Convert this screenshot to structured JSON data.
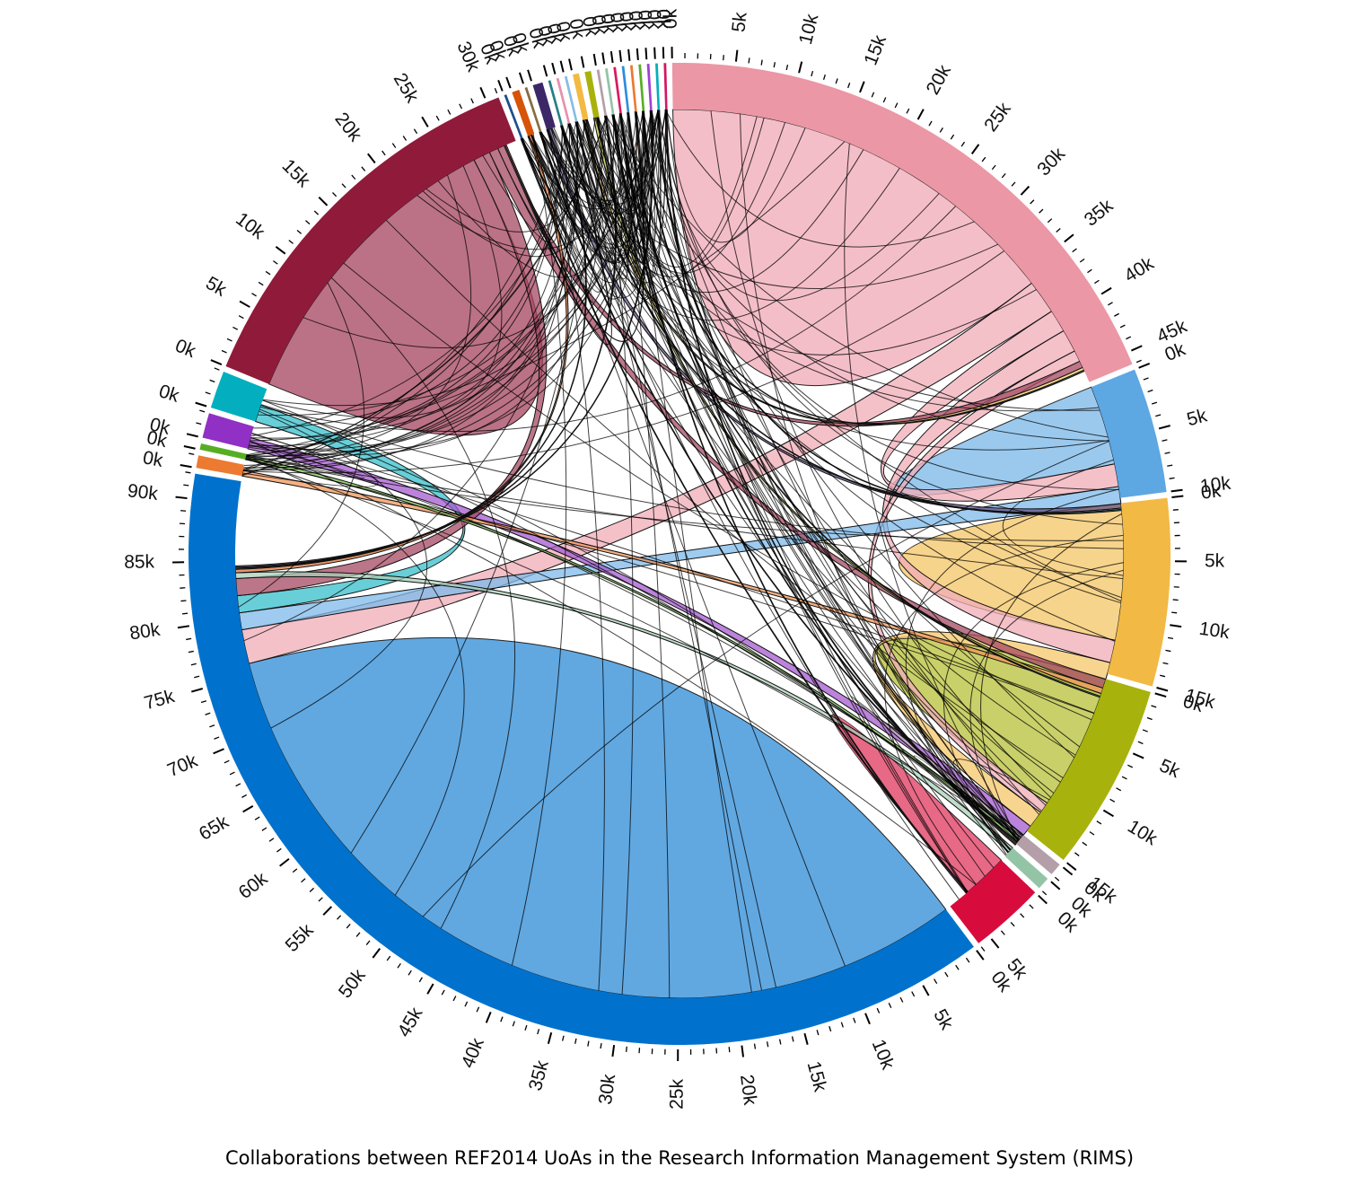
{
  "chart_data": {
    "type": "chord",
    "title": "",
    "caption": "Collaborations between REF2014 UoAs in the Research Information Management System (RIMS)",
    "tick_step": 1000,
    "label_step": 5000,
    "label_suffix": "k",
    "groups": [
      {
        "color": "#ec97a5",
        "total": 46000
      },
      {
        "color": "#5da7e3",
        "total": 10000
      },
      {
        "color": "#f2b944",
        "total": 15000
      },
      {
        "color": "#a8b20c",
        "total": 15000
      },
      {
        "color": "#b49ea8",
        "total": 1000
      },
      {
        "color": "#94c4a6",
        "total": 1000
      },
      {
        "color": "#d80c3c",
        "total": 6000
      },
      {
        "color": "#0072cd",
        "total": 92000
      },
      {
        "color": "#ec7a31",
        "total": 1000
      },
      {
        "color": "#57ae24",
        "total": 500
      },
      {
        "color": "#9030c4",
        "total": 2000
      },
      {
        "color": "#03afbe",
        "total": 3000
      },
      {
        "color": "#901a3a",
        "total": 31000
      },
      {
        "color": "#1f4e8c",
        "total": 200
      },
      {
        "color": "#d65307",
        "total": 600
      },
      {
        "color": "#8b6a3f",
        "total": 200
      },
      {
        "color": "#3c2868",
        "total": 800
      },
      {
        "color": "#287f86",
        "total": 200
      },
      {
        "color": "#e88fb0",
        "total": 200
      },
      {
        "color": "#86bde6",
        "total": 200
      },
      {
        "color": "#f2b944",
        "total": 500
      },
      {
        "color": "#a8b20c",
        "total": 500
      },
      {
        "color": "#b49ea8",
        "total": 200
      },
      {
        "color": "#94c4a6",
        "total": 200
      },
      {
        "color": "#d81c5e",
        "total": 200
      },
      {
        "color": "#2e8ddd",
        "total": 200
      },
      {
        "color": "#ec7a31",
        "total": 200
      },
      {
        "color": "#57ae24",
        "total": 200
      },
      {
        "color": "#a040d4",
        "total": 200
      },
      {
        "color": "#03afbe",
        "total": 200
      },
      {
        "color": "#d01860",
        "total": 200
      }
    ],
    "chords": [
      {
        "source": 0,
        "target": 0,
        "value": 36000
      },
      {
        "source": 7,
        "target": 7,
        "value": 76000
      },
      {
        "source": 12,
        "target": 12,
        "value": 27000
      },
      {
        "source": 1,
        "target": 1,
        "value": 7000
      },
      {
        "source": 2,
        "target": 2,
        "value": 12000
      },
      {
        "source": 3,
        "target": 3,
        "value": 12000
      },
      {
        "source": 0,
        "target": 7,
        "value": 3000
      },
      {
        "source": 0,
        "target": 1,
        "value": 2000
      },
      {
        "source": 0,
        "target": 2,
        "value": 2000
      },
      {
        "source": 0,
        "target": 3,
        "value": 1000
      },
      {
        "source": 1,
        "target": 7,
        "value": 1500
      },
      {
        "source": 2,
        "target": 3,
        "value": 1500
      },
      {
        "source": 6,
        "target": 6,
        "value": 4000
      },
      {
        "source": 11,
        "target": 7,
        "value": 1500
      },
      {
        "source": 10,
        "target": 3,
        "value": 1000
      },
      {
        "source": 12,
        "target": 7,
        "value": 1500
      },
      {
        "source": 12,
        "target": 2,
        "value": 800
      },
      {
        "source": 12,
        "target": 0,
        "value": 600
      },
      {
        "source": 5,
        "target": 7,
        "value": 500
      },
      {
        "source": 4,
        "target": 3,
        "value": 500
      },
      {
        "source": 8,
        "target": 2,
        "value": 500
      },
      {
        "source": 9,
        "target": 3,
        "value": 300
      },
      {
        "source": 14,
        "target": 7,
        "value": 300
      },
      {
        "source": 16,
        "target": 1,
        "value": 400
      },
      {
        "source": 20,
        "target": 0,
        "value": 250
      },
      {
        "source": 21,
        "target": 2,
        "value": 250
      },
      {
        "source": 13,
        "target": 6,
        "value": 100
      },
      {
        "source": 15,
        "target": 3,
        "value": 100
      },
      {
        "source": 17,
        "target": 7,
        "value": 100
      },
      {
        "source": 18,
        "target": 12,
        "value": 100
      },
      {
        "source": 19,
        "target": 1,
        "value": 100
      },
      {
        "source": 22,
        "target": 7,
        "value": 100
      },
      {
        "source": 23,
        "target": 3,
        "value": 100
      },
      {
        "source": 24,
        "target": 6,
        "value": 100
      },
      {
        "source": 25,
        "target": 2,
        "value": 100
      },
      {
        "source": 26,
        "target": 12,
        "value": 100
      },
      {
        "source": 27,
        "target": 0,
        "value": 100
      },
      {
        "source": 28,
        "target": 7,
        "value": 100
      },
      {
        "source": 29,
        "target": 1,
        "value": 100
      },
      {
        "source": 30,
        "target": 3,
        "value": 100
      }
    ]
  }
}
